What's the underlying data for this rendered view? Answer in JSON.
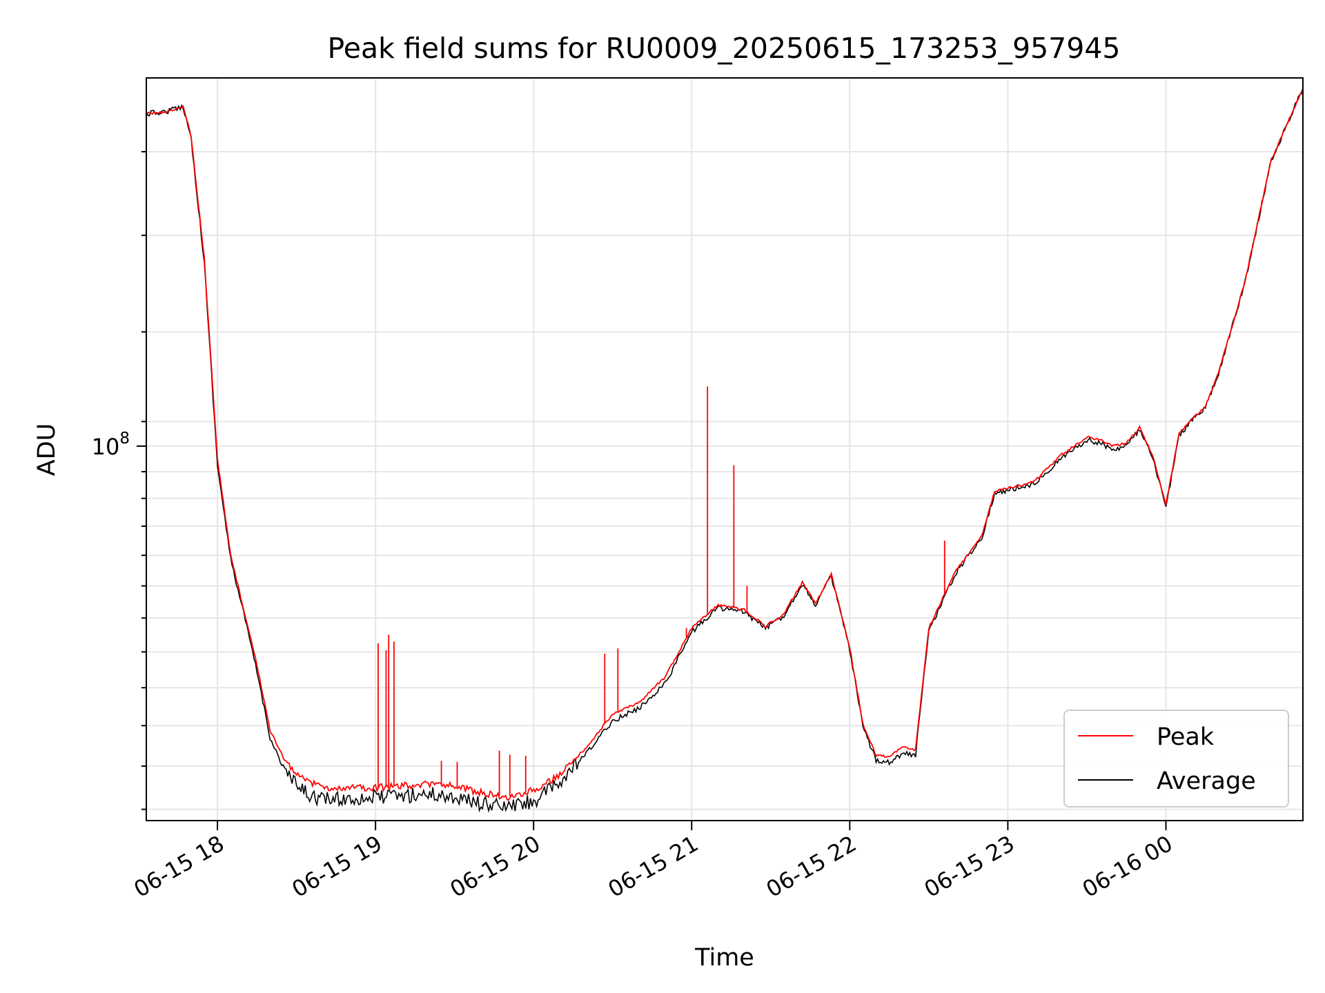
{
  "chart_data": {
    "type": "line",
    "title": "Peak field sums for RU0009_20250615_173253_957945",
    "xlabel": "Time",
    "ylabel": "ADU",
    "y_scale": "log",
    "xlim": [
      "2025-06-15 17:33",
      "2025-06-16 00:52"
    ],
    "ylim": [
      55000000,
      180000000
    ],
    "grid": true,
    "legend_position": "bottom-right",
    "x_ticks": [
      {
        "time": "2025-06-15 18:00",
        "label": "06-15 18"
      },
      {
        "time": "2025-06-15 19:00",
        "label": "06-15 19"
      },
      {
        "time": "2025-06-15 20:00",
        "label": "06-15 20"
      },
      {
        "time": "2025-06-15 21:00",
        "label": "06-15 21"
      },
      {
        "time": "2025-06-15 22:00",
        "label": "06-15 22"
      },
      {
        "time": "2025-06-15 23:00",
        "label": "06-15 23"
      },
      {
        "time": "2025-06-16 00:00",
        "label": "06-16 00"
      }
    ],
    "y_ticks": [
      {
        "value": 100000000,
        "base": "10",
        "exponent": "8"
      }
    ],
    "y_minor_ticks": [
      56000000,
      60000000,
      64000000,
      68000000,
      72000000,
      76000000,
      80000000,
      84000000,
      88000000,
      92000000,
      96000000,
      104000000,
      120000000,
      140000000,
      160000000
    ],
    "series": [
      {
        "name": "Peak",
        "color": "#ff0000",
        "points": [
          [
            "2025-06-15 17:33",
            170000000
          ],
          [
            "2025-06-15 17:40",
            170500000
          ],
          [
            "2025-06-15 17:47",
            172000000
          ],
          [
            "2025-06-15 17:50",
            164000000
          ],
          [
            "2025-06-15 17:55",
            135000000
          ],
          [
            "2025-06-15 18:00",
            98000000
          ],
          [
            "2025-06-15 18:05",
            84000000
          ],
          [
            "2025-06-15 18:10",
            77000000
          ],
          [
            "2025-06-15 18:15",
            70500000
          ],
          [
            "2025-06-15 18:20",
            63500000
          ],
          [
            "2025-06-15 18:25",
            60800000
          ],
          [
            "2025-06-15 18:30",
            59200000
          ],
          [
            "2025-06-15 18:35",
            58500000
          ],
          [
            "2025-06-15 18:40",
            58000000
          ],
          [
            "2025-06-15 18:45",
            57900000
          ],
          [
            "2025-06-15 19:00",
            57950000
          ],
          [
            "2025-06-15 19:10",
            58150000
          ],
          [
            "2025-06-15 19:20",
            58300000
          ],
          [
            "2025-06-15 19:30",
            58100000
          ],
          [
            "2025-06-15 19:40",
            57500000
          ],
          [
            "2025-06-15 19:50",
            57100000
          ],
          [
            "2025-06-15 20:00",
            57700000
          ],
          [
            "2025-06-15 20:10",
            59200000
          ],
          [
            "2025-06-15 20:20",
            61800000
          ],
          [
            "2025-06-15 20:30",
            65200000
          ],
          [
            "2025-06-15 20:40",
            66400000
          ],
          [
            "2025-06-15 20:50",
            69200000
          ],
          [
            "2025-06-15 21:00",
            74800000
          ],
          [
            "2025-06-15 21:10",
            77600000
          ],
          [
            "2025-06-15 21:20",
            77000000
          ],
          [
            "2025-06-15 21:28",
            75000000
          ],
          [
            "2025-06-15 21:35",
            76500000
          ],
          [
            "2025-06-15 21:42",
            80500000
          ],
          [
            "2025-06-15 21:47",
            77800000
          ],
          [
            "2025-06-15 21:53",
            81500000
          ],
          [
            "2025-06-15 22:00",
            72500000
          ],
          [
            "2025-06-15 22:05",
            64200000
          ],
          [
            "2025-06-15 22:10",
            61000000
          ],
          [
            "2025-06-15 22:15",
            60900000
          ],
          [
            "2025-06-15 22:20",
            61800000
          ],
          [
            "2025-06-15 22:25",
            61600000
          ],
          [
            "2025-06-15 22:30",
            74800000
          ],
          [
            "2025-06-15 22:40",
            81800000
          ],
          [
            "2025-06-15 22:45",
            84200000
          ],
          [
            "2025-06-15 22:50",
            86500000
          ],
          [
            "2025-06-15 22:55",
            93000000
          ],
          [
            "2025-06-15 23:00",
            93500000
          ],
          [
            "2025-06-15 23:10",
            94500000
          ],
          [
            "2025-06-15 23:20",
            98500000
          ],
          [
            "2025-06-15 23:30",
            101500000
          ],
          [
            "2025-06-15 23:35",
            101000000
          ],
          [
            "2025-06-15 23:40",
            100000000
          ],
          [
            "2025-06-15 23:45",
            100500000
          ],
          [
            "2025-06-15 23:50",
            103000000
          ],
          [
            "2025-06-15 23:55",
            98500000
          ],
          [
            "2025-06-16 00:00",
            91000000
          ],
          [
            "2025-06-16 00:05",
            102000000
          ],
          [
            "2025-06-16 00:10",
            104500000
          ],
          [
            "2025-06-16 00:15",
            106500000
          ],
          [
            "2025-06-16 00:20",
            112500000
          ],
          [
            "2025-06-16 00:30",
            130000000
          ],
          [
            "2025-06-16 00:40",
            158000000
          ],
          [
            "2025-06-16 00:52",
            177000000
          ]
        ]
      },
      {
        "name": "Average",
        "color": "#000000",
        "points": [
          [
            "2025-06-15 17:33",
            170000000
          ],
          [
            "2025-06-15 17:40",
            170500000
          ],
          [
            "2025-06-15 17:47",
            172000000
          ],
          [
            "2025-06-15 17:50",
            163500000
          ],
          [
            "2025-06-15 17:55",
            134000000
          ],
          [
            "2025-06-15 18:00",
            97000000
          ],
          [
            "2025-06-15 18:05",
            83500000
          ],
          [
            "2025-06-15 18:10",
            76500000
          ],
          [
            "2025-06-15 18:15",
            69800000
          ],
          [
            "2025-06-15 18:20",
            62800000
          ],
          [
            "2025-06-15 18:25",
            59800000
          ],
          [
            "2025-06-15 18:30",
            58100000
          ],
          [
            "2025-06-15 18:35",
            57300000
          ],
          [
            "2025-06-15 18:40",
            56900000
          ],
          [
            "2025-06-15 18:45",
            56900000
          ],
          [
            "2025-06-15 19:00",
            57100000
          ],
          [
            "2025-06-15 19:10",
            57200000
          ],
          [
            "2025-06-15 19:20",
            57400000
          ],
          [
            "2025-06-15 19:30",
            57100000
          ],
          [
            "2025-06-15 19:40",
            56500000
          ],
          [
            "2025-06-15 19:50",
            56200000
          ],
          [
            "2025-06-15 20:00",
            56700000
          ],
          [
            "2025-06-15 20:10",
            58400000
          ],
          [
            "2025-06-15 20:20",
            61200000
          ],
          [
            "2025-06-15 20:30",
            64500000
          ],
          [
            "2025-06-15 20:40",
            65800000
          ],
          [
            "2025-06-15 20:50",
            68500000
          ],
          [
            "2025-06-15 21:00",
            74300000
          ],
          [
            "2025-06-15 21:10",
            77300000
          ],
          [
            "2025-06-15 21:20",
            76700000
          ],
          [
            "2025-06-15 21:28",
            74800000
          ],
          [
            "2025-06-15 21:35",
            76300000
          ],
          [
            "2025-06-15 21:42",
            80300000
          ],
          [
            "2025-06-15 21:47",
            77600000
          ],
          [
            "2025-06-15 21:53",
            81300000
          ],
          [
            "2025-06-15 22:00",
            72200000
          ],
          [
            "2025-06-15 22:05",
            63800000
          ],
          [
            "2025-06-15 22:10",
            60600000
          ],
          [
            "2025-06-15 22:15",
            60400000
          ],
          [
            "2025-06-15 22:20",
            61200000
          ],
          [
            "2025-06-15 22:25",
            61100000
          ],
          [
            "2025-06-15 22:30",
            74500000
          ],
          [
            "2025-06-15 22:40",
            81500000
          ],
          [
            "2025-06-15 22:45",
            84000000
          ],
          [
            "2025-06-15 22:50",
            86300000
          ],
          [
            "2025-06-15 22:55",
            92700000
          ],
          [
            "2025-06-15 23:00",
            93200000
          ],
          [
            "2025-06-15 23:10",
            94200000
          ],
          [
            "2025-06-15 23:20",
            98000000
          ],
          [
            "2025-06-15 23:30",
            101000000
          ],
          [
            "2025-06-15 23:35",
            100500000
          ],
          [
            "2025-06-15 23:40",
            99500000
          ],
          [
            "2025-06-15 23:45",
            100000000
          ],
          [
            "2025-06-15 23:50",
            102700000
          ],
          [
            "2025-06-15 23:55",
            98000000
          ],
          [
            "2025-06-16 00:00",
            90700000
          ],
          [
            "2025-06-16 00:05",
            101700000
          ],
          [
            "2025-06-16 00:10",
            104300000
          ],
          [
            "2025-06-16 00:15",
            106300000
          ],
          [
            "2025-06-16 00:20",
            112300000
          ],
          [
            "2025-06-16 00:30",
            129800000
          ],
          [
            "2025-06-16 00:40",
            157800000
          ],
          [
            "2025-06-16 00:52",
            177000000
          ]
        ]
      }
    ],
    "spikes": [
      [
        "2025-06-15 19:01",
        73000000
      ],
      [
        "2025-06-15 19:04",
        72200000
      ],
      [
        "2025-06-15 19:05",
        74000000
      ],
      [
        "2025-06-15 19:07",
        73200000
      ],
      [
        "2025-06-15 19:25",
        60500000
      ],
      [
        "2025-06-15 19:31",
        60400000
      ],
      [
        "2025-06-15 19:47",
        61500000
      ],
      [
        "2025-06-15 19:51",
        61100000
      ],
      [
        "2025-06-15 19:57",
        61000000
      ],
      [
        "2025-06-15 20:27",
        71800000
      ],
      [
        "2025-06-15 20:32",
        72400000
      ],
      [
        "2025-06-15 20:58",
        74800000
      ],
      [
        "2025-06-15 21:06",
        110000000
      ],
      [
        "2025-06-15 21:16",
        97000000
      ],
      [
        "2025-06-15 21:21",
        80000000
      ],
      [
        "2025-06-15 22:28",
        69000000
      ],
      [
        "2025-06-15 22:36",
        86000000
      ]
    ]
  }
}
